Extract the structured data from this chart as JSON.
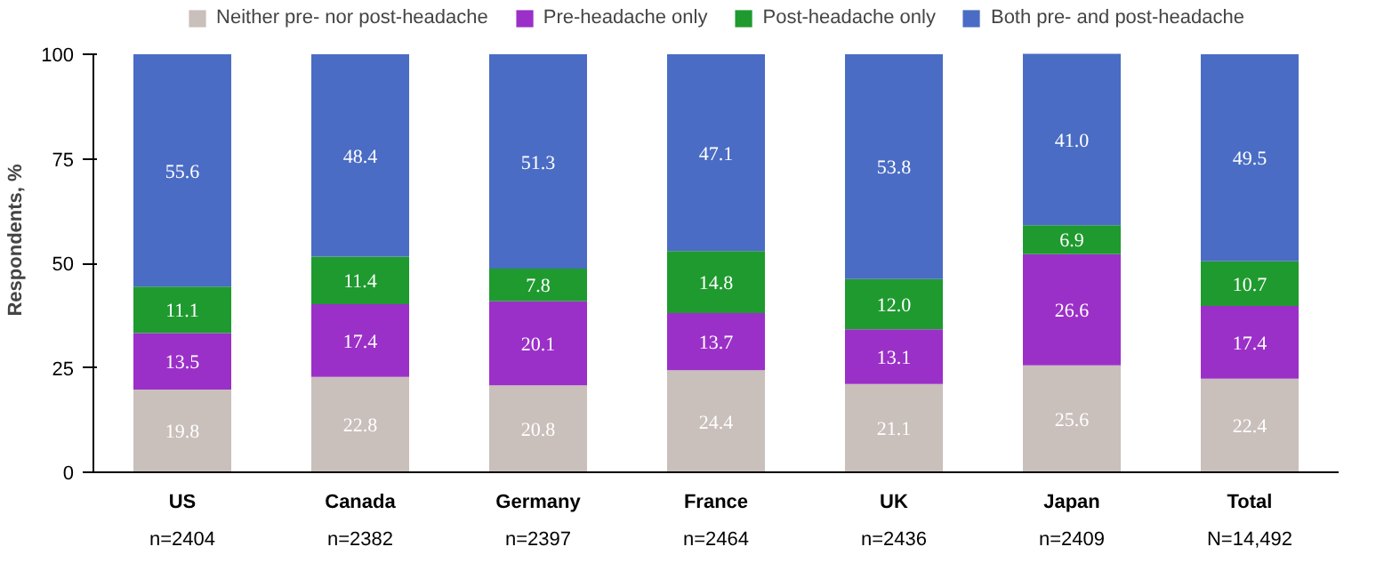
{
  "chart_data": {
    "type": "bar",
    "stacked": true,
    "ylabel": "Respondents, %",
    "categories": [
      "US\nn=2404",
      "Canada\nn=2382",
      "Germany\nn=2397",
      "France\nn=2464",
      "UK\nn=2436",
      "Japan\nn=2409",
      "Total\nN=14,492"
    ],
    "series": [
      {
        "name": "Neither pre- nor post-headache",
        "color": "#c9bfbb",
        "values": [
          19.8,
          22.8,
          20.8,
          24.4,
          21.1,
          25.6,
          22.4
        ],
        "value_labels": [
          "19.8",
          "22.8",
          "20.8",
          "24.4",
          "21.1",
          "25.6",
          "22.4"
        ]
      },
      {
        "name": "Pre-headache only",
        "color": "#9b30c8",
        "values": [
          13.5,
          17.4,
          20.1,
          13.7,
          13.1,
          26.6,
          17.4
        ],
        "value_labels": [
          "13.5",
          "17.4",
          "20.1",
          "13.7",
          "13.1",
          "26.6",
          "17.4"
        ]
      },
      {
        "name": "Post-headache only",
        "color": "#1f9a2f",
        "values": [
          11.1,
          11.4,
          7.8,
          14.8,
          12.0,
          6.9,
          10.7
        ],
        "value_labels": [
          "11.1",
          "11.4",
          "7.8",
          "14.8",
          "12.0",
          "6.9",
          "10.7"
        ]
      },
      {
        "name": "Both pre- and post-headache",
        "color": "#4a6cc4",
        "values": [
          55.6,
          48.4,
          51.3,
          47.1,
          53.8,
          41.0,
          49.5
        ],
        "value_labels": [
          "55.6",
          "48.4",
          "51.3",
          "47.1",
          "53.8",
          "41.0",
          "49.5"
        ]
      }
    ],
    "ylim": [
      0,
      100
    ],
    "yticks": [
      0,
      25,
      50,
      75,
      100
    ],
    "grid": false,
    "legend": "top"
  }
}
